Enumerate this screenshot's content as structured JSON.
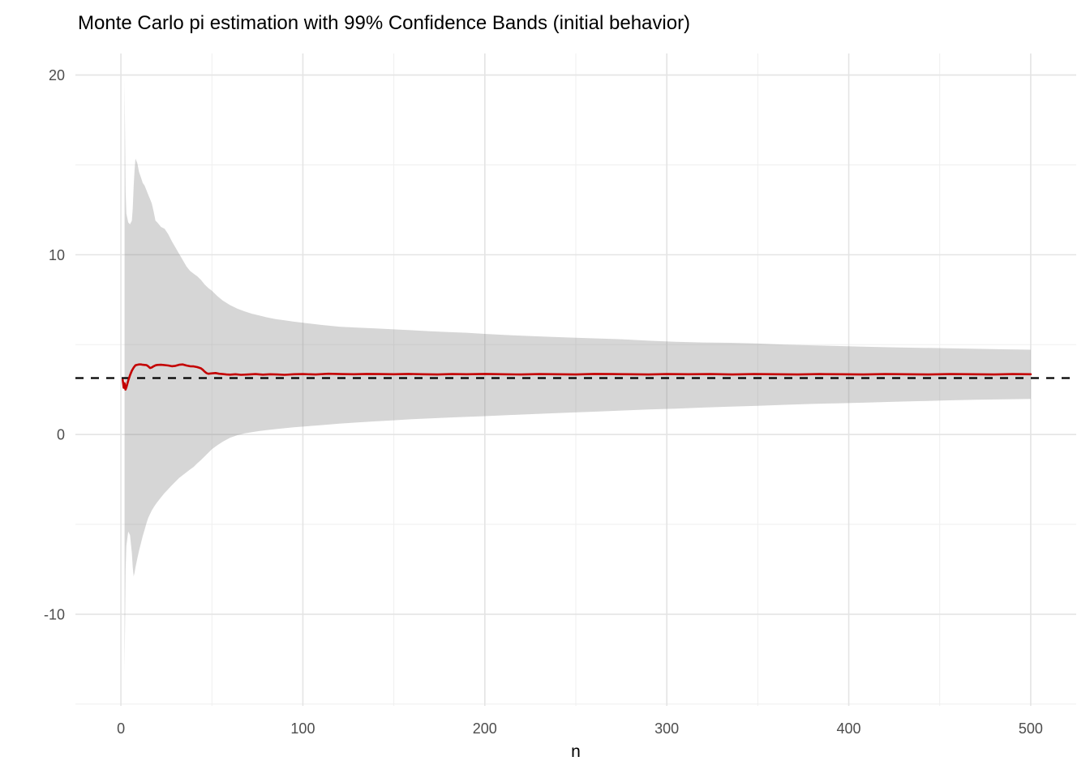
{
  "title": "Monte Carlo pi estimation with 99% Confidence Bands (initial behavior)",
  "chart_data": {
    "type": "line",
    "title": "Monte Carlo pi estimation with 99% Confidence Bands (initial behavior)",
    "xlabel": "n",
    "ylabel": "",
    "xlim": [
      -25,
      525
    ],
    "ylim": [
      -15.1,
      21.2
    ],
    "grid": true,
    "legend_position": "none",
    "x_ticks": [
      0,
      100,
      200,
      300,
      400,
      500
    ],
    "x_tick_labels": [
      "0",
      "100",
      "200",
      "300",
      "400",
      "500"
    ],
    "y_ticks": [
      -10,
      0,
      10,
      20
    ],
    "y_tick_labels": [
      "-10",
      "0",
      "10",
      "20"
    ],
    "x_minor_ticks": [
      50,
      150,
      250,
      350,
      450
    ],
    "y_minor_ticks": [
      -15,
      -5,
      5,
      15
    ],
    "reference_line": {
      "name": "pi-true-value",
      "value": 3.14159,
      "style": "dashed",
      "color": "#000000"
    },
    "series": [
      {
        "name": "confidence-band-99pct",
        "type": "ribbon",
        "fill": "#808080",
        "fill_opacity": 0.32,
        "x": [
          2,
          2.6,
          3,
          4,
          5,
          6,
          6.5,
          7,
          7.5,
          8,
          9,
          10,
          11,
          12,
          13,
          14,
          15,
          16,
          17,
          18,
          19,
          20,
          22,
          24,
          26,
          28,
          30,
          32,
          34,
          36,
          38,
          40,
          42,
          44,
          46,
          48,
          50,
          53,
          56,
          60,
          64,
          68,
          72,
          76,
          80,
          85,
          90,
          95,
          100,
          110,
          120,
          130,
          140,
          150,
          160,
          170,
          180,
          190,
          200,
          215,
          230,
          245,
          260,
          275,
          290,
          305,
          320,
          335,
          350,
          365,
          380,
          395,
          410,
          425,
          440,
          455,
          470,
          485,
          500
        ],
        "upper": [
          19.7,
          13.5,
          12.3,
          11.8,
          11.7,
          11.9,
          12.6,
          13.8,
          14.7,
          15.35,
          15.1,
          14.6,
          14.3,
          14.0,
          13.85,
          13.6,
          13.35,
          13.1,
          12.85,
          12.4,
          11.9,
          11.8,
          11.55,
          11.45,
          11.15,
          10.75,
          10.4,
          10.05,
          9.7,
          9.35,
          9.1,
          8.95,
          8.8,
          8.6,
          8.35,
          8.15,
          8.0,
          7.7,
          7.45,
          7.2,
          7.0,
          6.85,
          6.72,
          6.62,
          6.52,
          6.42,
          6.35,
          6.28,
          6.22,
          6.1,
          6.0,
          5.95,
          5.9,
          5.85,
          5.8,
          5.74,
          5.7,
          5.66,
          5.6,
          5.52,
          5.46,
          5.4,
          5.35,
          5.3,
          5.22,
          5.16,
          5.12,
          5.1,
          5.06,
          5.0,
          4.96,
          4.92,
          4.88,
          4.85,
          4.82,
          4.8,
          4.77,
          4.74,
          4.72
        ],
        "lower": [
          -13.2,
          -7.5,
          -6.2,
          -5.4,
          -5.6,
          -6.6,
          -7.4,
          -7.9,
          -7.7,
          -7.4,
          -6.9,
          -6.45,
          -6.05,
          -5.65,
          -5.3,
          -4.95,
          -4.65,
          -4.42,
          -4.22,
          -4.05,
          -3.9,
          -3.76,
          -3.5,
          -3.26,
          -3.04,
          -2.82,
          -2.62,
          -2.42,
          -2.26,
          -2.1,
          -1.95,
          -1.8,
          -1.6,
          -1.42,
          -1.22,
          -1.02,
          -0.82,
          -0.6,
          -0.4,
          -0.18,
          -0.04,
          0.06,
          0.13,
          0.19,
          0.24,
          0.3,
          0.35,
          0.4,
          0.44,
          0.52,
          0.6,
          0.67,
          0.73,
          0.79,
          0.85,
          0.9,
          0.94,
          0.98,
          1.02,
          1.09,
          1.15,
          1.21,
          1.27,
          1.33,
          1.39,
          1.44,
          1.5,
          1.55,
          1.6,
          1.65,
          1.7,
          1.74,
          1.78,
          1.82,
          1.86,
          1.9,
          1.93,
          1.96,
          1.98
        ]
      },
      {
        "name": "running-pi-estimate",
        "type": "line",
        "color": "#C40000",
        "linewidth": 2.6,
        "x": [
          1,
          1.5,
          2,
          2.5,
          3,
          3.5,
          4,
          5,
          6,
          7,
          8,
          9,
          10,
          11,
          12,
          13,
          14,
          15,
          16,
          17,
          18,
          19,
          20,
          22,
          24,
          26,
          28,
          30,
          32,
          34,
          36,
          38,
          40,
          42,
          44,
          45,
          46,
          47,
          48,
          50,
          52,
          54,
          56,
          58,
          60,
          63,
          66,
          70,
          74,
          78,
          82,
          86,
          90,
          95,
          100,
          107,
          114,
          121,
          128,
          135,
          142,
          150,
          158,
          166,
          174,
          182,
          190,
          200,
          210,
          220,
          230,
          240,
          250,
          260,
          270,
          280,
          290,
          300,
          312,
          324,
          336,
          348,
          360,
          372,
          384,
          396,
          408,
          420,
          432,
          444,
          456,
          468,
          480,
          490,
          500
        ],
        "y": [
          3.05,
          2.6,
          2.85,
          2.5,
          2.62,
          2.8,
          3.0,
          3.3,
          3.55,
          3.72,
          3.85,
          3.88,
          3.9,
          3.9,
          3.88,
          3.87,
          3.86,
          3.8,
          3.7,
          3.73,
          3.8,
          3.85,
          3.87,
          3.88,
          3.86,
          3.84,
          3.8,
          3.82,
          3.88,
          3.9,
          3.84,
          3.8,
          3.79,
          3.75,
          3.68,
          3.6,
          3.5,
          3.42,
          3.38,
          3.4,
          3.42,
          3.38,
          3.36,
          3.34,
          3.33,
          3.35,
          3.32,
          3.34,
          3.36,
          3.33,
          3.35,
          3.34,
          3.32,
          3.35,
          3.36,
          3.34,
          3.38,
          3.36,
          3.35,
          3.37,
          3.36,
          3.35,
          3.37,
          3.35,
          3.34,
          3.36,
          3.35,
          3.37,
          3.35,
          3.34,
          3.36,
          3.35,
          3.34,
          3.37,
          3.36,
          3.35,
          3.34,
          3.36,
          3.35,
          3.36,
          3.34,
          3.36,
          3.35,
          3.34,
          3.36,
          3.35,
          3.34,
          3.36,
          3.35,
          3.34,
          3.36,
          3.35,
          3.34,
          3.36,
          3.35
        ]
      }
    ],
    "colors": {
      "background": "#FFFFFF",
      "grid_major": "#E4E4E4",
      "grid_minor": "#EFEFEF",
      "tick_text": "#4D4D4D",
      "title_text": "#000000",
      "axis_title_text": "#000000",
      "estimate_line": "#C40000",
      "ribbon_fill": "#808080",
      "reference_line": "#000000"
    }
  }
}
